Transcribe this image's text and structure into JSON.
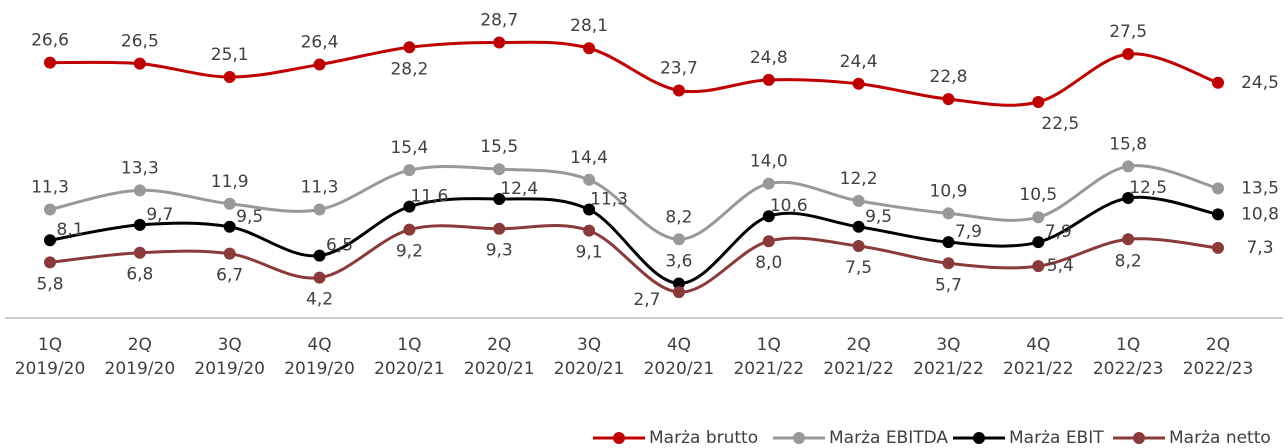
{
  "chart_data": {
    "type": "line",
    "categories": [
      "1Q 2019/20",
      "2Q 2019/20",
      "3Q 2019/20",
      "4Q 2019/20",
      "1Q 2020/21",
      "2Q 2020/21",
      "3Q 2020/21",
      "4Q 2020/21",
      "1Q 2021/22",
      "2Q 2021/22",
      "3Q 2021/22",
      "4Q 2021/22",
      "1Q 2022/23",
      "2Q 2022/23"
    ],
    "ylim": [
      0,
      33
    ],
    "legend": "bottom",
    "series": [
      {
        "name": "Marża brutto",
        "color": "#c00000",
        "values": [
          26.6,
          26.5,
          25.1,
          26.4,
          28.2,
          28.7,
          28.1,
          23.7,
          24.8,
          24.4,
          22.8,
          22.5,
          27.5,
          24.5
        ],
        "value_labels": [
          "26,6",
          "26,5",
          "25,1",
          "26,4",
          "28,2",
          "28,7",
          "28,1",
          "23,7",
          "24,8",
          "24,4",
          "22,8",
          "22,5",
          "27,5",
          "24,5"
        ]
      },
      {
        "name": "Marża EBITDA",
        "color": "#999999",
        "values": [
          11.3,
          13.3,
          11.9,
          11.3,
          15.4,
          15.5,
          14.4,
          8.2,
          14.0,
          12.2,
          10.9,
          10.5,
          15.8,
          13.5
        ],
        "value_labels": [
          "11,3",
          "13,3",
          "11,9",
          "11,3",
          "15,4",
          "15,5",
          "14,4",
          "8,2",
          "14,0",
          "12,2",
          "10,9",
          "10,5",
          "15,8",
          "13,5"
        ]
      },
      {
        "name": "Marża EBIT",
        "color": "#000000",
        "values": [
          8.1,
          9.7,
          9.5,
          6.5,
          11.6,
          12.4,
          11.3,
          3.6,
          10.6,
          9.5,
          7.9,
          7.9,
          12.5,
          10.8
        ],
        "value_labels": [
          "8,1",
          "9,7",
          "9,5",
          "6,5",
          "11,6",
          "12,4",
          "11,3",
          "3,6",
          "10,6",
          "9,5",
          "7,9",
          "7,9",
          "12,5",
          "10,8"
        ]
      },
      {
        "name": "Marża netto",
        "color": "#8b3a3a",
        "values": [
          5.8,
          6.8,
          6.7,
          4.2,
          9.2,
          9.3,
          9.1,
          2.7,
          8.0,
          7.5,
          5.7,
          5.4,
          8.2,
          7.3
        ],
        "value_labels": [
          "5,8",
          "6,8",
          "6,7",
          "4,2",
          "9,2",
          "9,3",
          "9,1",
          "2,7",
          "8,0",
          "7,5",
          "5,7",
          "5,4",
          "8,2",
          "7,3"
        ]
      }
    ]
  }
}
